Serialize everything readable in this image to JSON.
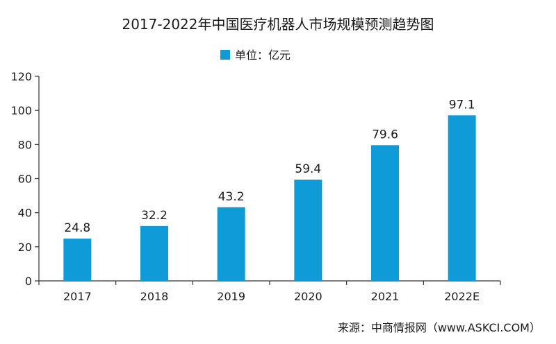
{
  "chart_data": {
    "type": "bar",
    "title": "2017-2022年中国医疗机器人市场规模预测趋势图",
    "legend": {
      "label": "单位：亿元",
      "placement": "top-center"
    },
    "categories": [
      "2017",
      "2018",
      "2019",
      "2020",
      "2021",
      "2022E"
    ],
    "values": [
      24.8,
      32.2,
      43.2,
      59.4,
      79.6,
      97.1
    ],
    "value_labels": [
      "24.8",
      "32.2",
      "43.2",
      "59.4",
      "79.6",
      "97.1"
    ],
    "ylim": [
      0,
      120
    ],
    "yticks": [
      0,
      20,
      40,
      60,
      80,
      100,
      120
    ],
    "xlabel": "",
    "ylabel": "",
    "grid": false,
    "bar_color": "#0e9bd8",
    "axis_color": "#333333"
  },
  "source": "来源：中商情报网（www.ASKCI.COM）"
}
